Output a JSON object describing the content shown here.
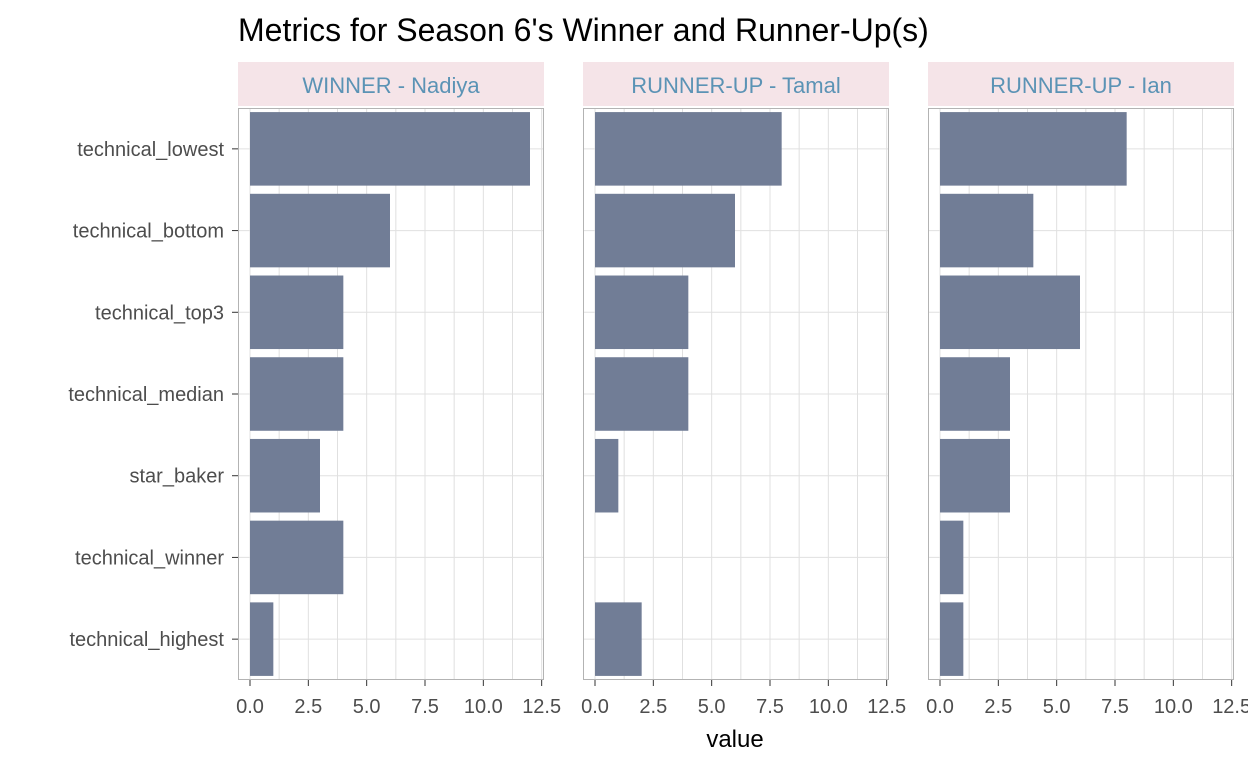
{
  "chart_data": {
    "type": "bar",
    "orientation": "horizontal",
    "title": "Metrics for Season 6's Winner and Runner-Up(s)",
    "xlabel": "value",
    "ylabel": "",
    "xlim": [
      0,
      12.5
    ],
    "x_ticks": [
      "0.0",
      "2.5",
      "5.0",
      "7.5",
      "10.0",
      "12.5"
    ],
    "x_tick_values": [
      0,
      2.5,
      5,
      7.5,
      10,
      12.5
    ],
    "grid": true,
    "categories": [
      "technical_lowest",
      "technical_bottom",
      "technical_top3",
      "technical_median",
      "star_baker",
      "technical_winner",
      "technical_highest"
    ],
    "facets": [
      {
        "label": "WINNER - Nadiya",
        "values": [
          12,
          6,
          4,
          4,
          3,
          4,
          1
        ]
      },
      {
        "label": "RUNNER-UP - Tamal",
        "values": [
          8,
          6,
          4,
          4,
          1,
          0,
          2
        ]
      },
      {
        "label": "RUNNER-UP - Ian",
        "values": [
          8,
          4,
          6,
          3,
          3,
          1,
          1
        ]
      }
    ],
    "colors": {
      "bar": "#717d96",
      "strip_bg": "#f5e4e8",
      "strip_text": "#5b93b5",
      "grid": "#e0e0e0",
      "panel_border": "#b3b3b3"
    }
  }
}
